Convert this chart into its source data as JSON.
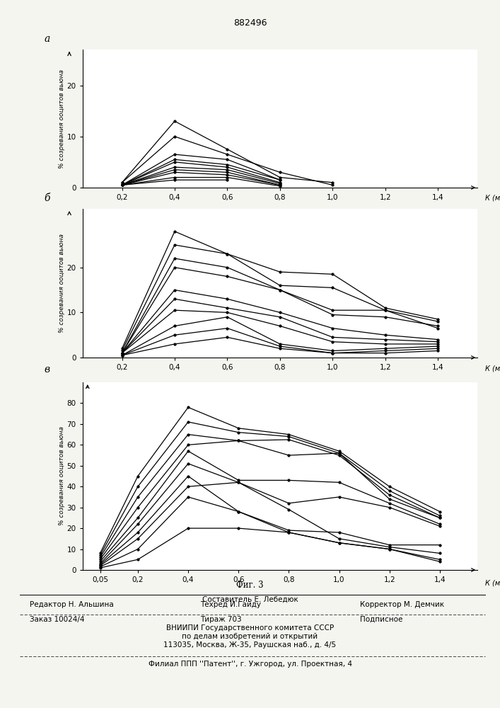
{
  "title": "882496",
  "fig_label": "Фиг. 3",
  "ylabel": "% созревания ооцитов вьюна",
  "subplot_a_label": "а",
  "subplot_b_label": "б",
  "subplot_v_label": "в",
  "x_ticks_ab": [
    0.2,
    0.4,
    0.6,
    0.8,
    1.0,
    1.2,
    1.4
  ],
  "x_ticks_ab_labels": [
    "0,2",
    "0,4",
    "0,6",
    "0,8",
    "1,0",
    "1,2",
    "1,4"
  ],
  "x_ticks_v": [
    0.05,
    0.2,
    0.4,
    0.6,
    0.8,
    1.0,
    1.2,
    1.4
  ],
  "x_ticks_v_labels": [
    "0,05",
    "0,2",
    "0,4",
    "0,6",
    "0,8",
    "1,0",
    "1,2",
    "1,4"
  ],
  "subplot_a": {
    "ylim": [
      0,
      27
    ],
    "yticks": [
      0,
      10,
      20
    ],
    "ytick_labels": [
      "0",
      "10",
      "20"
    ],
    "xlim": [
      0.05,
      1.55
    ],
    "lines": [
      [
        0.2,
        0.4,
        0.6,
        0.8,
        1.0
      ],
      [
        0.2,
        0.4,
        0.6,
        0.8,
        1.0
      ],
      [
        0.2,
        0.4,
        0.6,
        0.8
      ],
      [
        0.2,
        0.4,
        0.6,
        0.8
      ],
      [
        0.2,
        0.4,
        0.6,
        0.8
      ],
      [
        0.2,
        0.4,
        0.6,
        0.8
      ],
      [
        0.2,
        0.4,
        0.6,
        0.8
      ],
      [
        0.2,
        0.4,
        0.6,
        0.8
      ],
      [
        0.2,
        0.4,
        0.6,
        0.8
      ],
      [
        0.2,
        0.4,
        0.6
      ]
    ],
    "values": [
      [
        1.0,
        13.0,
        7.5,
        2.0,
        1.0
      ],
      [
        1.0,
        10.0,
        6.5,
        3.0,
        0.5
      ],
      [
        0.5,
        6.5,
        5.5,
        1.5
      ],
      [
        0.5,
        5.5,
        4.5,
        1.5
      ],
      [
        0.5,
        5.0,
        4.0,
        1.0
      ],
      [
        0.5,
        4.0,
        3.5,
        0.8
      ],
      [
        0.5,
        3.5,
        3.0,
        0.5
      ],
      [
        0.5,
        3.0,
        2.5,
        0.5
      ],
      [
        0.5,
        2.0,
        2.0,
        0.3
      ],
      [
        0.5,
        1.5,
        1.5
      ]
    ]
  },
  "subplot_b": {
    "ylim": [
      0,
      33
    ],
    "yticks": [
      0,
      10,
      20
    ],
    "ytick_labels": [
      "0",
      "10",
      "20"
    ],
    "xlim": [
      0.05,
      1.55
    ],
    "lines": [
      [
        0.2,
        0.4,
        0.6,
        0.8,
        1.0,
        1.2,
        1.4
      ],
      [
        0.2,
        0.4,
        0.6,
        0.8,
        1.0,
        1.2,
        1.4
      ],
      [
        0.2,
        0.4,
        0.6,
        0.8,
        1.0,
        1.2,
        1.4
      ],
      [
        0.2,
        0.4,
        0.6,
        0.8,
        1.0,
        1.2,
        1.4
      ],
      [
        0.2,
        0.4,
        0.6,
        0.8,
        1.0,
        1.2,
        1.4
      ],
      [
        0.2,
        0.4,
        0.6,
        0.8,
        1.0,
        1.2,
        1.4
      ],
      [
        0.2,
        0.4,
        0.6,
        0.8,
        1.0,
        1.2,
        1.4
      ],
      [
        0.2,
        0.4,
        0.6,
        0.8,
        1.0,
        1.2,
        1.4
      ],
      [
        0.2,
        0.4,
        0.6,
        0.8,
        1.0,
        1.2,
        1.4
      ],
      [
        0.2,
        0.4,
        0.6,
        0.8,
        1.0,
        1.2,
        1.4
      ]
    ],
    "values": [
      [
        2.0,
        28.0,
        23.0,
        19.0,
        18.5,
        11.0,
        8.5
      ],
      [
        1.5,
        25.0,
        23.0,
        16.0,
        15.5,
        10.5,
        8.0
      ],
      [
        1.0,
        22.0,
        20.0,
        15.0,
        9.5,
        9.0,
        7.0
      ],
      [
        1.0,
        20.0,
        18.0,
        15.0,
        10.5,
        10.5,
        6.5
      ],
      [
        1.0,
        15.0,
        13.0,
        10.0,
        6.5,
        5.0,
        4.0
      ],
      [
        1.0,
        13.0,
        11.0,
        9.0,
        4.5,
        4.0,
        3.5
      ],
      [
        1.0,
        10.5,
        10.0,
        7.0,
        3.5,
        3.0,
        3.0
      ],
      [
        0.5,
        7.0,
        9.0,
        3.0,
        1.5,
        2.0,
        2.5
      ],
      [
        0.5,
        5.0,
        6.5,
        2.5,
        1.0,
        1.5,
        2.0
      ],
      [
        0.5,
        3.0,
        4.5,
        2.0,
        1.0,
        1.0,
        1.5
      ]
    ]
  },
  "subplot_v": {
    "ylim": [
      0,
      90
    ],
    "yticks": [
      0,
      10,
      20,
      30,
      40,
      50,
      60,
      70,
      80
    ],
    "ytick_labels": [
      "0",
      "10",
      "20",
      "30",
      "40",
      "50",
      "60",
      "70",
      "80"
    ],
    "xlim": [
      -0.02,
      1.55
    ],
    "lines": [
      [
        0.05,
        0.2,
        0.4,
        0.6,
        0.8,
        1.0,
        1.2,
        1.4
      ],
      [
        0.05,
        0.2,
        0.4,
        0.6,
        0.8,
        1.0,
        1.2,
        1.4
      ],
      [
        0.05,
        0.2,
        0.4,
        0.6,
        0.8,
        1.0,
        1.2,
        1.4
      ],
      [
        0.05,
        0.2,
        0.4,
        0.6,
        0.8,
        1.0,
        1.2,
        1.4
      ],
      [
        0.05,
        0.2,
        0.4,
        0.6,
        0.8,
        1.0,
        1.2,
        1.4
      ],
      [
        0.05,
        0.2,
        0.4,
        0.6,
        0.8,
        1.0,
        1.2,
        1.4
      ],
      [
        0.05,
        0.2,
        0.4,
        0.6,
        0.8,
        1.0,
        1.2,
        1.4
      ],
      [
        0.05,
        0.2,
        0.4,
        0.6,
        0.8,
        1.0,
        1.2,
        1.4
      ],
      [
        0.05,
        0.2,
        0.4,
        0.6,
        0.8,
        1.0,
        1.2,
        1.4
      ],
      [
        0.05,
        0.2,
        0.4,
        0.6,
        0.8,
        1.0,
        1.2,
        1.4
      ]
    ],
    "values": [
      [
        8.0,
        45.0,
        78.0,
        68.0,
        65.0,
        57.0,
        40.0,
        28.0
      ],
      [
        7.0,
        40.0,
        71.0,
        66.0,
        64.0,
        56.0,
        38.0,
        26.0
      ],
      [
        6.0,
        35.0,
        65.0,
        62.0,
        62.5,
        55.0,
        36.0,
        25.0
      ],
      [
        5.0,
        30.0,
        60.0,
        62.0,
        55.0,
        56.0,
        34.0,
        25.0
      ],
      [
        4.0,
        25.0,
        57.0,
        43.0,
        43.0,
        42.0,
        32.0,
        22.0
      ],
      [
        3.0,
        22.0,
        51.0,
        42.0,
        32.0,
        35.0,
        30.0,
        21.0
      ],
      [
        2.5,
        18.0,
        45.0,
        28.0,
        19.0,
        18.0,
        12.0,
        12.0
      ],
      [
        2.0,
        15.0,
        40.0,
        42.0,
        29.0,
        15.0,
        11.0,
        8.0
      ],
      [
        1.5,
        10.0,
        35.0,
        28.0,
        18.0,
        13.0,
        10.0,
        5.0
      ],
      [
        1.0,
        5.0,
        20.0,
        20.0,
        18.0,
        13.0,
        10.0,
        4.0
      ]
    ]
  },
  "line_color": "#000000",
  "marker_size": 2.5,
  "linewidth": 0.9,
  "bg_color": "#f5f5f0"
}
